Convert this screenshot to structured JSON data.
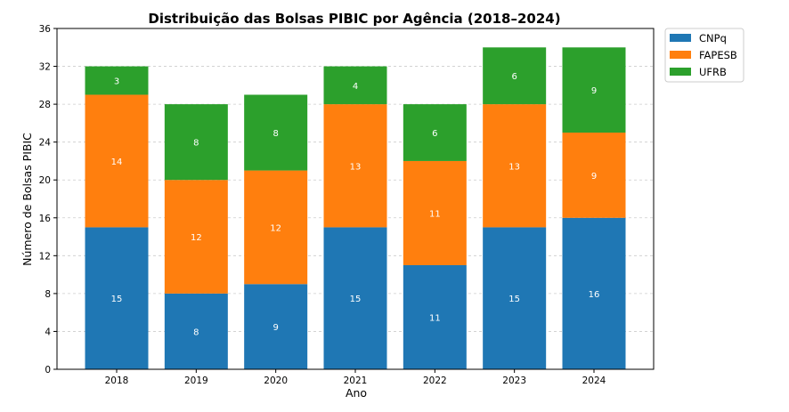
{
  "chart_data": {
    "type": "bar",
    "stacked": true,
    "title": "Distribuição das Bolsas PIBIC por Agência (2018–2024)",
    "xlabel": "Ano",
    "ylabel": "Número de Bolsas PIBIC",
    "ylim": [
      0,
      36
    ],
    "yticks": [
      0,
      4,
      8,
      12,
      16,
      20,
      24,
      28,
      32,
      36
    ],
    "grid": true,
    "legend": "outside-top-right",
    "categories": [
      "2018",
      "2019",
      "2020",
      "2021",
      "2022",
      "2023",
      "2024"
    ],
    "series": [
      {
        "name": "CNPq",
        "color": "#1f77b4",
        "values": [
          15,
          8,
          9,
          15,
          11,
          15,
          16
        ]
      },
      {
        "name": "FAPESB",
        "color": "#ff7f0e",
        "values": [
          14,
          12,
          12,
          13,
          11,
          13,
          9
        ]
      },
      {
        "name": "UFRB",
        "color": "#2ca02c",
        "values": [
          3,
          8,
          8,
          4,
          6,
          6,
          9
        ]
      }
    ]
  }
}
